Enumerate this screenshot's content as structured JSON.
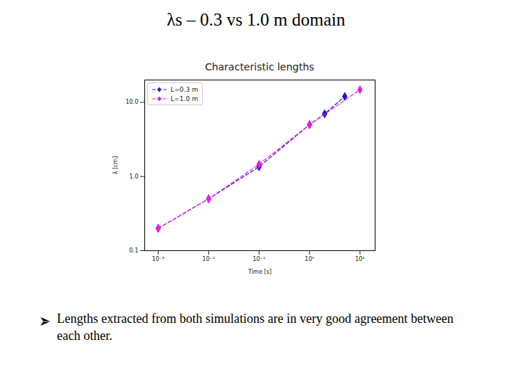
{
  "slide": {
    "title": "λs – 0.3 vs 1.0 m domain",
    "bullets": [
      "Lengths extracted from both simulations are in very good agreement between each other."
    ]
  },
  "chart_data": {
    "type": "line",
    "title": "Characteristic lengths",
    "x_label": "Time [s]",
    "y_label": "λ [cm]",
    "log": true,
    "grid": false,
    "legend": "upper left",
    "xlim": [
      0.00054,
      20
    ],
    "ylim": [
      0.1,
      20
    ],
    "xticks": [
      {
        "value": 0.001,
        "label": "10⁻³"
      },
      {
        "value": 0.01,
        "label": "10⁻²"
      },
      {
        "value": 0.1,
        "label": "10⁻¹"
      },
      {
        "value": 1,
        "label": "10⁰"
      },
      {
        "value": 10,
        "label": "10¹"
      }
    ],
    "yticks": [
      0.1,
      {
        "value": 1,
        "label": "1.0"
      },
      {
        "value": 10,
        "label": "10.0"
      }
    ],
    "series": [
      {
        "name": "L=0.3 m",
        "color": "#1a1acc",
        "marker": "diamond",
        "line_style": "dashed",
        "x": [
          0.001,
          0.01,
          0.1,
          1,
          2,
          5
        ],
        "values": [
          0.2,
          0.5,
          1.35,
          5,
          7,
          12
        ]
      },
      {
        "name": "L=1.0 m",
        "color": "#e61ee6",
        "marker": "diamond",
        "line_style": "dashed",
        "x": [
          0.001,
          0.01,
          0.1,
          1,
          10
        ],
        "values": [
          0.2,
          0.5,
          1.46,
          5,
          14.8
        ]
      }
    ]
  }
}
